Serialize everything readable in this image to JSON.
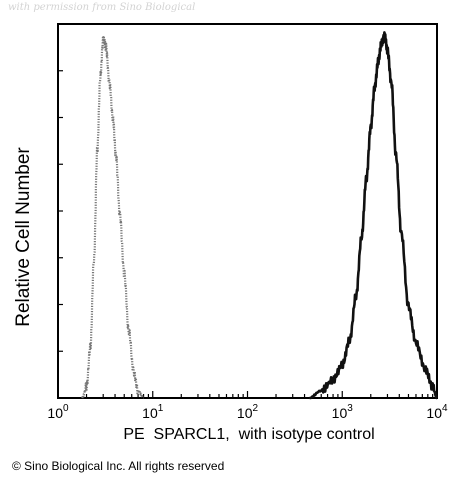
{
  "watermark": "with permission from Sino Biological",
  "copyright": "© Sino Biological Inc. All rights reserved",
  "chart_data": {
    "type": "line",
    "xlabel": "PE  SPARCL1,  with isotype control",
    "ylabel": "Relative Cell Number",
    "xscale": "log",
    "xlim": [
      1,
      10000
    ],
    "ylim": [
      0,
      1
    ],
    "x_ticks": [
      {
        "base": "10",
        "exp": "0",
        "value": 1
      },
      {
        "base": "10",
        "exp": "1",
        "value": 10
      },
      {
        "base": "10",
        "exp": "2",
        "value": 100
      },
      {
        "base": "10",
        "exp": "3",
        "value": 1000
      },
      {
        "base": "10",
        "exp": "4",
        "value": 10000
      }
    ],
    "y_ticks_labeled": false,
    "grid": false,
    "series": [
      {
        "style": "dotted",
        "color": "#777777",
        "x": [
          1.8,
          2.0,
          2.2,
          2.4,
          2.6,
          2.8,
          3.0,
          3.2,
          3.5,
          3.8,
          4.1,
          4.5,
          5.0,
          5.6,
          6.3,
          7.0,
          8.0
        ],
        "y": [
          0.0,
          0.03,
          0.14,
          0.38,
          0.68,
          0.88,
          0.98,
          0.96,
          0.86,
          0.76,
          0.66,
          0.5,
          0.34,
          0.18,
          0.07,
          0.02,
          0.0
        ]
      },
      {
        "style": "solid",
        "color": "#111111",
        "x": [
          450,
          600,
          800,
          1000,
          1200,
          1400,
          1600,
          1800,
          2000,
          2200,
          2400,
          2600,
          2800,
          3000,
          3300,
          3700,
          4200,
          5000,
          6000,
          7500,
          9000,
          10000
        ],
        "y": [
          0.0,
          0.02,
          0.05,
          0.09,
          0.16,
          0.28,
          0.44,
          0.6,
          0.74,
          0.85,
          0.92,
          0.97,
          0.99,
          0.95,
          0.86,
          0.66,
          0.45,
          0.25,
          0.15,
          0.08,
          0.03,
          0.0
        ]
      }
    ]
  }
}
